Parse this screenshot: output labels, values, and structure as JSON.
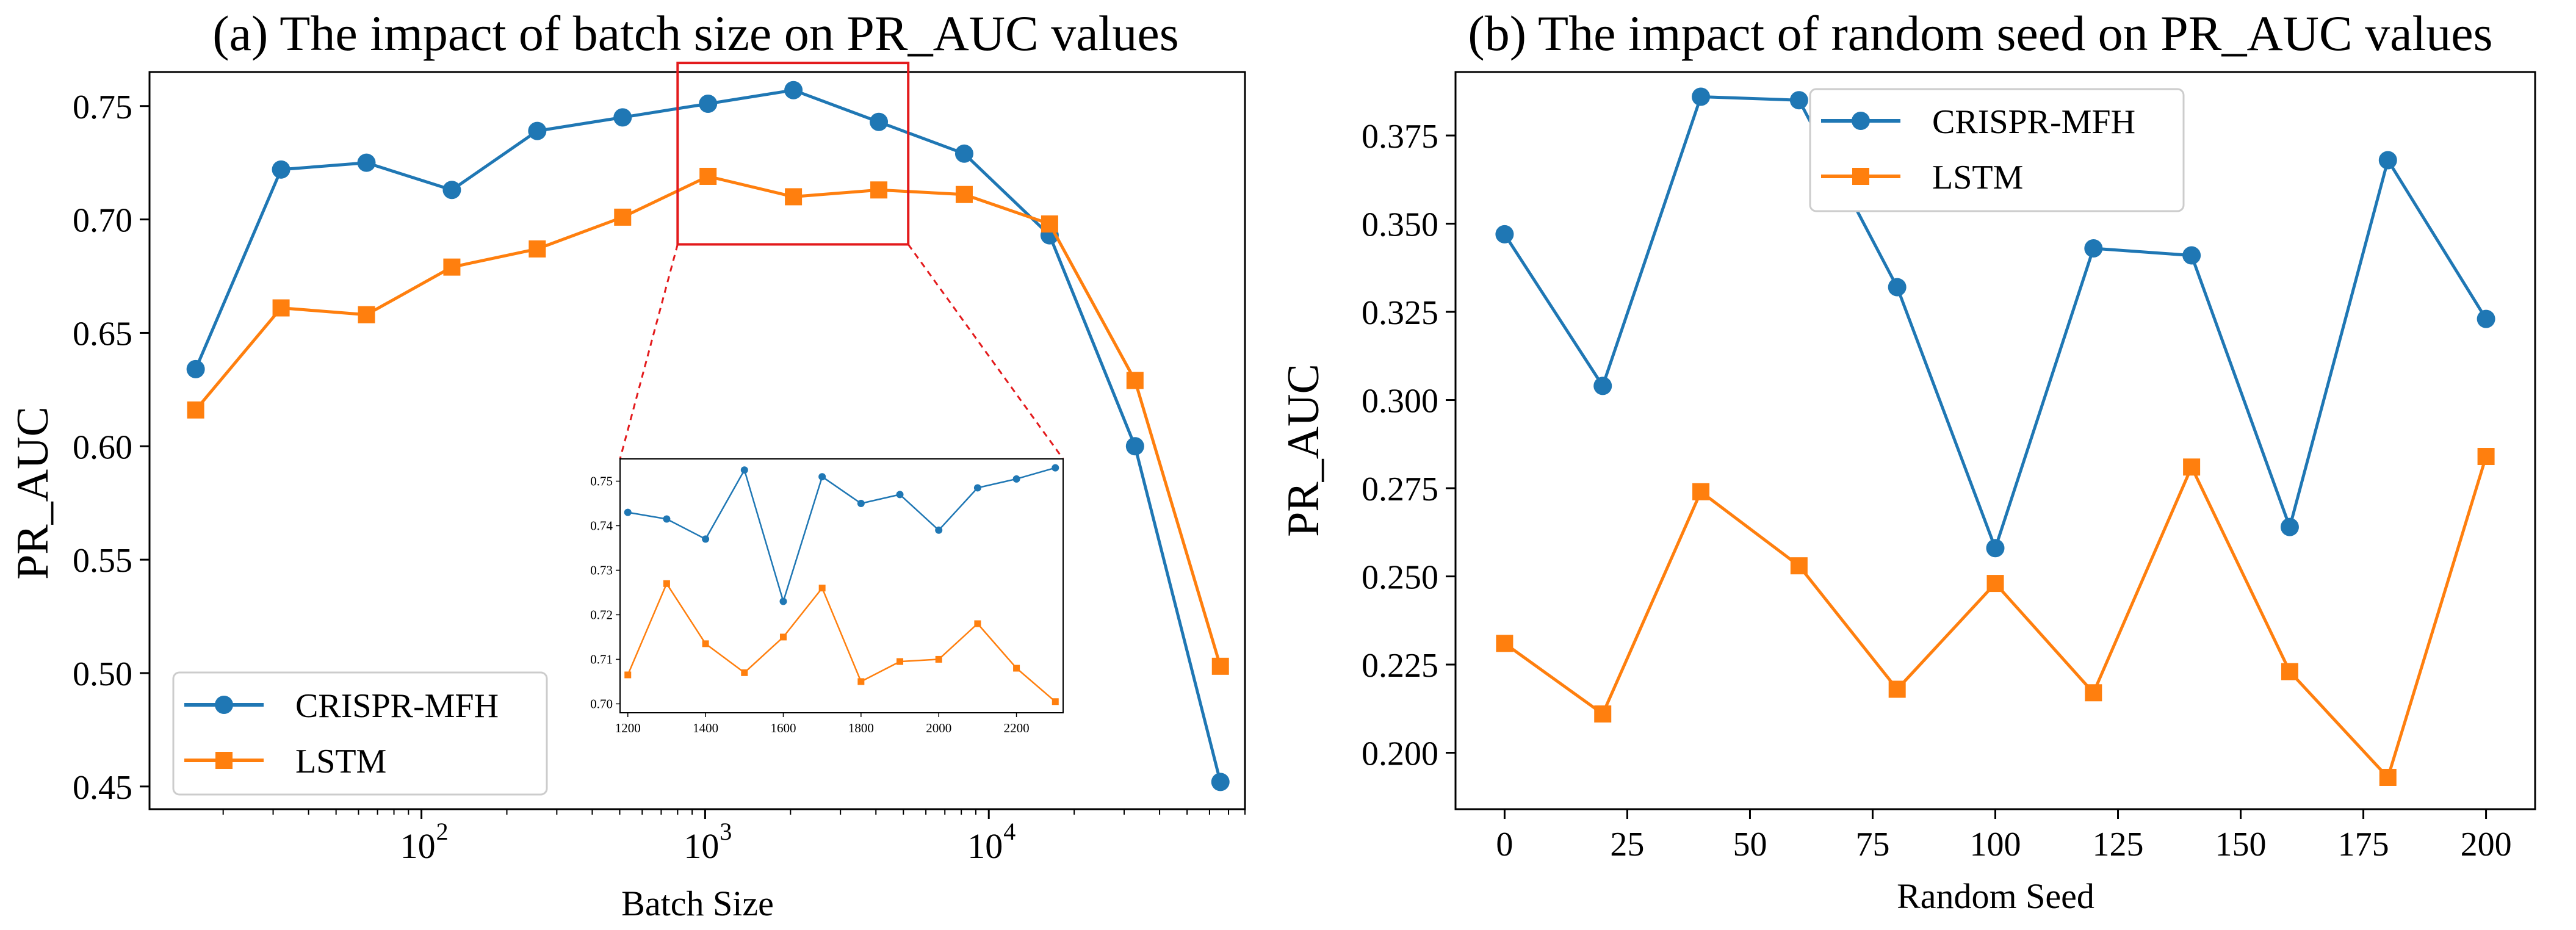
{
  "colors": {
    "series1": "#1f77b4",
    "series2": "#ff7f0e",
    "zoom_box": "#e31a1c",
    "axis": "#000000"
  },
  "chart_data": [
    {
      "type": "line",
      "title": "(a) The impact of batch size on PR_AUC values",
      "xlabel": "Batch Size",
      "ylabel": "PR_AUC",
      "xscale": "log",
      "xlim": [
        11,
        80000
      ],
      "ylim": [
        0.44,
        0.765
      ],
      "yticks": [
        0.45,
        0.5,
        0.55,
        0.6,
        0.65,
        0.7,
        0.75
      ],
      "ytick_labels": [
        "0.45",
        "0.50",
        "0.55",
        "0.60",
        "0.65",
        "0.70",
        "0.75"
      ],
      "xticks": [
        100,
        1000,
        10000
      ],
      "xtick_labels": [
        {
          "base": "10",
          "exp": "2"
        },
        {
          "base": "10",
          "exp": "3"
        },
        {
          "base": "10",
          "exp": "4"
        }
      ],
      "x": [
        16,
        32,
        64,
        128,
        256,
        512,
        1024,
        2048,
        4096,
        8192,
        16384,
        32768,
        65536
      ],
      "series": [
        {
          "name": "CRISPR-MFH",
          "marker": "circle",
          "values": [
            0.634,
            0.722,
            0.725,
            0.713,
            0.739,
            0.745,
            0.751,
            0.757,
            0.743,
            0.729,
            0.693,
            0.6,
            0.452
          ]
        },
        {
          "name": "LSTM",
          "marker": "square",
          "values": [
            0.616,
            0.661,
            0.658,
            0.679,
            0.687,
            0.701,
            0.719,
            0.71,
            0.713,
            0.711,
            0.698,
            0.629,
            0.503
          ]
        }
      ],
      "legend": "lower-left",
      "zoom_region": {
        "xlim": [
          800,
          5200
        ],
        "ylim": [
          0.689,
          0.769
        ]
      },
      "inset": {
        "type": "line",
        "xlim": [
          1180,
          2320
        ],
        "ylim": [
          0.698,
          0.755
        ],
        "xticks": [
          1200,
          1400,
          1600,
          1800,
          2000,
          2200
        ],
        "xtick_labels": [
          "1200",
          "1400",
          "1600",
          "1800",
          "2000",
          "2200"
        ],
        "yticks": [
          0.7,
          0.71,
          0.72,
          0.73,
          0.74,
          0.75
        ],
        "ytick_labels": [
          "0.70",
          "0.71",
          "0.72",
          "0.73",
          "0.74",
          "0.75"
        ],
        "x": [
          1200,
          1300,
          1400,
          1500,
          1600,
          1700,
          1800,
          1900,
          2000,
          2100,
          2200,
          2300
        ],
        "series": [
          {
            "name": "CRISPR-MFH",
            "marker": "circle",
            "values": [
              0.743,
              0.7415,
              0.737,
              0.7525,
              0.723,
              0.751,
              0.745,
              0.747,
              0.739,
              0.7485,
              0.7505,
              0.753
            ]
          },
          {
            "name": "LSTM",
            "marker": "square",
            "values": [
              0.7065,
              0.727,
              0.7135,
              0.707,
              0.715,
              0.726,
              0.705,
              0.7095,
              0.71,
              0.718,
              0.708,
              0.7005
            ]
          }
        ]
      }
    },
    {
      "type": "line",
      "title": "(b) The impact of random seed on PR_AUC values",
      "xlabel": "Random Seed",
      "ylabel": "PR_AUC",
      "xscale": "linear",
      "xlim": [
        -10,
        210
      ],
      "ylim": [
        0.184,
        0.393
      ],
      "yticks": [
        0.2,
        0.225,
        0.25,
        0.275,
        0.3,
        0.325,
        0.35,
        0.375
      ],
      "ytick_labels": [
        "0.200",
        "0.225",
        "0.250",
        "0.275",
        "0.300",
        "0.325",
        "0.350",
        "0.375"
      ],
      "xticks": [
        0,
        25,
        50,
        75,
        100,
        125,
        150,
        175,
        200
      ],
      "xtick_labels": [
        "0",
        "25",
        "50",
        "75",
        "100",
        "125",
        "150",
        "175",
        "200"
      ],
      "x": [
        0,
        20,
        40,
        60,
        80,
        100,
        120,
        140,
        160,
        180,
        200
      ],
      "series": [
        {
          "name": "CRISPR-MFH",
          "marker": "circle",
          "values": [
            0.347,
            0.304,
            0.386,
            0.385,
            0.332,
            0.258,
            0.343,
            0.341,
            0.264,
            0.368,
            0.323
          ]
        },
        {
          "name": "LSTM",
          "marker": "square",
          "values": [
            0.231,
            0.211,
            0.274,
            0.253,
            0.218,
            0.248,
            0.217,
            0.281,
            0.223,
            0.193,
            0.284
          ]
        }
      ],
      "legend": "upper-left"
    }
  ]
}
